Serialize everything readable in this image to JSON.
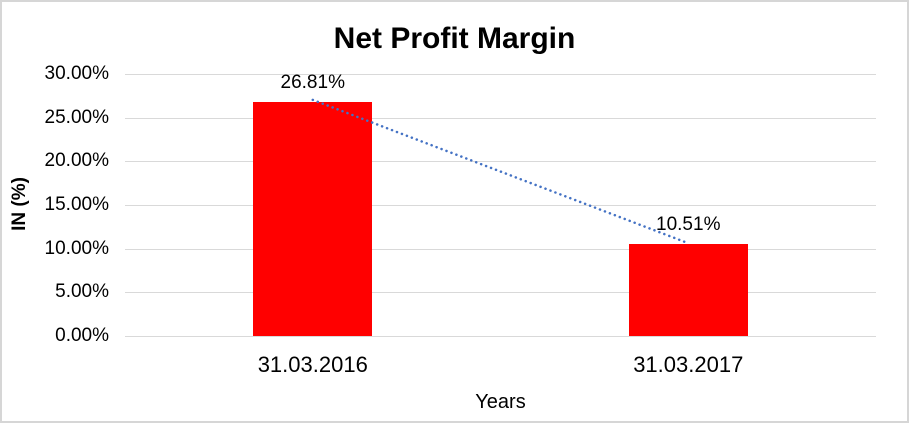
{
  "chart_data": {
    "type": "bar",
    "title": "Net Profit Margin",
    "xlabel": "Years",
    "ylabel": "IN (%)",
    "categories": [
      "31.03.2016",
      "31.03.2017"
    ],
    "series": [
      {
        "name": "Net Profit Margin",
        "values": [
          26.81,
          10.51
        ]
      }
    ],
    "data_labels": [
      "26.81%",
      "10.51%"
    ],
    "ylim": [
      0,
      30
    ],
    "yticks": [
      {
        "value": 30,
        "label": "30.00%"
      },
      {
        "value": 25,
        "label": "25.00%"
      },
      {
        "value": 20,
        "label": "20.00%"
      },
      {
        "value": 15,
        "label": "15.00%"
      },
      {
        "value": 10,
        "label": "10.00%"
      },
      {
        "value": 5,
        "label": "5.00%"
      },
      {
        "value": 0,
        "label": "0.00%"
      }
    ],
    "grid": true,
    "legend": "none",
    "trendline": {
      "style": "dotted",
      "connects": "bar-tops"
    },
    "colors": {
      "bar": "#ff0000",
      "trendline": "#4472c4",
      "gridline": "#d9d9d9",
      "text": "#000000",
      "background": "#ffffff",
      "border": "#d6d6d6"
    }
  }
}
